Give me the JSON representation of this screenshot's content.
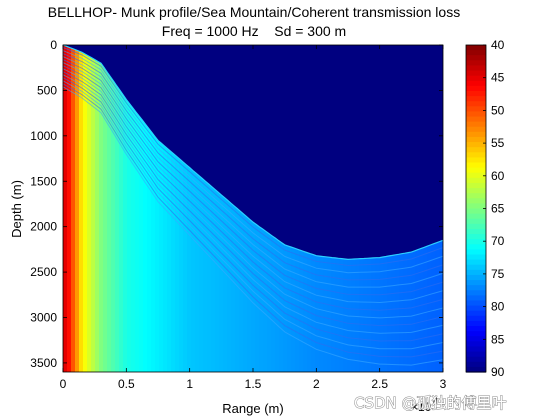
{
  "chart_data": {
    "type": "heatmap",
    "title": "BELLHOP- Munk profile/Sea Mountain/Coherent transmission loss",
    "subtitle": "Freq = 1000 Hz    Sd = 300 m",
    "xlabel": "Range (m)",
    "ylabel": "Depth (m)",
    "x_exponent_label": "×10",
    "x_exponent_power": "4",
    "xlim": [
      0,
      30000
    ],
    "ylim": [
      0,
      3600
    ],
    "y_reversed": true,
    "x_ticks": [
      0,
      5000,
      10000,
      15000,
      20000,
      25000,
      30000
    ],
    "x_tick_labels": [
      "0",
      "0.5",
      "1",
      "1.5",
      "2",
      "2.5",
      "3"
    ],
    "y_ticks": [
      0,
      500,
      1000,
      1500,
      2000,
      2500,
      3000,
      3500
    ],
    "y_tick_labels": [
      "0",
      "500",
      "1000",
      "1500",
      "2000",
      "2500",
      "3000",
      "3500"
    ],
    "colorbar": {
      "range": [
        40,
        90
      ],
      "reversed": true,
      "ticks": [
        40,
        45,
        50,
        55,
        60,
        65,
        70,
        75,
        80,
        85,
        90
      ],
      "tick_labels": [
        "40",
        "45",
        "50",
        "55",
        "60",
        "65",
        "70",
        "75",
        "80",
        "85",
        "90"
      ],
      "colormap": "jet"
    },
    "bathymetry": [
      {
        "range": 0,
        "depth": 0
      },
      {
        "range": 1500,
        "depth": 80
      },
      {
        "range": 3000,
        "depth": 200
      },
      {
        "range": 5000,
        "depth": 600
      },
      {
        "range": 7500,
        "depth": 1050
      },
      {
        "range": 10000,
        "depth": 1350
      },
      {
        "range": 12500,
        "depth": 1650
      },
      {
        "range": 15000,
        "depth": 1950
      },
      {
        "range": 17500,
        "depth": 2200
      },
      {
        "range": 20000,
        "depth": 2320
      },
      {
        "range": 22500,
        "depth": 2360
      },
      {
        "range": 25000,
        "depth": 2340
      },
      {
        "range": 27500,
        "depth": 2280
      },
      {
        "range": 30000,
        "depth": 2150
      }
    ],
    "below_bottom_tl": 90,
    "tl_samples": [
      {
        "range": 300,
        "tl": 45
      },
      {
        "range": 1500,
        "tl": 58
      },
      {
        "range": 3000,
        "tl": 65
      },
      {
        "range": 5000,
        "tl": 70
      },
      {
        "range": 10000,
        "tl": 74
      },
      {
        "range": 20000,
        "tl": 77
      },
      {
        "range": 30000,
        "tl": 79
      }
    ]
  },
  "colors": {
    "jet_low": "#00007f",
    "jet_high": "#7f0000"
  },
  "watermark": "CSDN @孤独的傅里叶"
}
